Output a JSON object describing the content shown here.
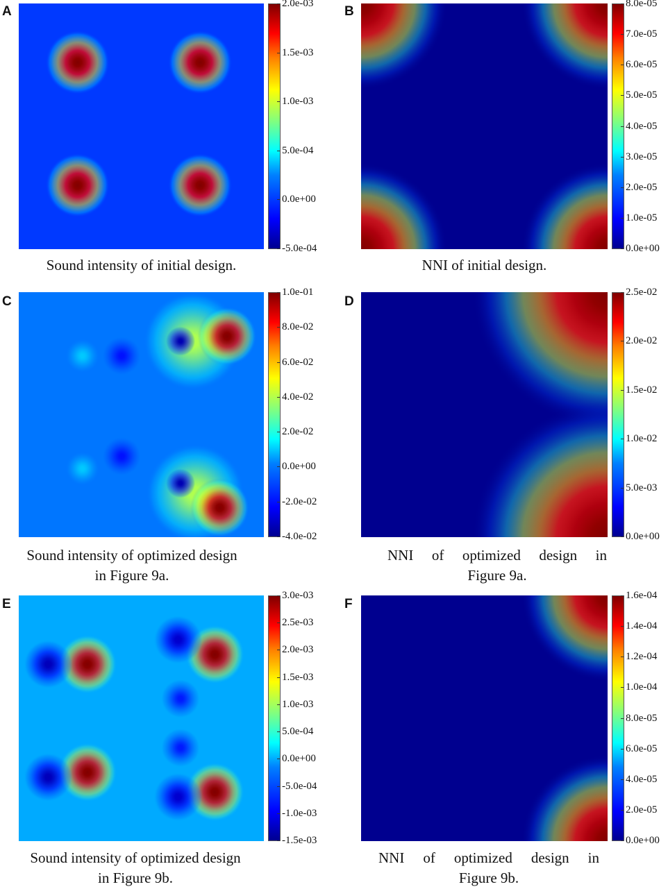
{
  "chart_data": [
    {
      "panel": "A",
      "type": "heatmap",
      "caption": "Sound intensity of initial design.",
      "colorbar_ticks": [
        "2.0e-03",
        "1.5e-03",
        "1.0e-03",
        "5.0e-04",
        "0.0e+00",
        "-5.0e-04"
      ],
      "colorbar_range": [
        -0.0005,
        0.002
      ],
      "background_value": 0.0,
      "features": [
        {
          "u": 0.24,
          "v": 0.24,
          "value": 0.002,
          "r": 0.13
        },
        {
          "u": 0.74,
          "v": 0.24,
          "value": 0.002,
          "r": 0.13
        },
        {
          "u": 0.24,
          "v": 0.74,
          "value": 0.002,
          "r": 0.13
        },
        {
          "u": 0.74,
          "v": 0.74,
          "value": 0.002,
          "r": 0.13
        }
      ]
    },
    {
      "panel": "B",
      "type": "heatmap",
      "caption": "NNI of initial design.",
      "colorbar_ticks": [
        "8.0e-05",
        "7.0e-05",
        "6.0e-05",
        "5.0e-05",
        "4.0e-05",
        "3.0e-05",
        "2.0e-05",
        "1.0e-05",
        "0.0e+00"
      ],
      "colorbar_range": [
        0,
        8e-05
      ],
      "background_value": 0.0,
      "features": [
        {
          "u": 0.0,
          "v": 0.0,
          "value": 8e-05,
          "r": 0.35
        },
        {
          "u": 1.0,
          "v": 0.0,
          "value": 8e-05,
          "r": 0.35
        },
        {
          "u": 0.0,
          "v": 1.0,
          "value": 8e-05,
          "r": 0.35
        },
        {
          "u": 1.0,
          "v": 1.0,
          "value": 8e-05,
          "r": 0.35
        }
      ]
    },
    {
      "panel": "C",
      "type": "heatmap",
      "caption_lines": [
        "Sound intensity of optimized design",
        "in Figure 9a."
      ],
      "colorbar_ticks": [
        "1.0e-01",
        "8.0e-02",
        "6.0e-02",
        "4.0e-02",
        "2.0e-02",
        "0.0e+00",
        "-2.0e-02",
        "-4.0e-02"
      ],
      "colorbar_range": [
        -0.04,
        0.1
      ],
      "background_value": 0.0,
      "features": [
        {
          "u": 0.85,
          "v": 0.18,
          "value": 0.1,
          "r": 0.12
        },
        {
          "u": 0.82,
          "v": 0.88,
          "value": 0.1,
          "r": 0.12
        },
        {
          "u": 0.71,
          "v": 0.2,
          "value": 0.04,
          "r": 0.2
        },
        {
          "u": 0.72,
          "v": 0.82,
          "value": 0.04,
          "r": 0.2
        },
        {
          "u": 0.66,
          "v": 0.2,
          "value": -0.035,
          "r": 0.06
        },
        {
          "u": 0.66,
          "v": 0.78,
          "value": -0.035,
          "r": 0.06
        },
        {
          "u": 0.42,
          "v": 0.26,
          "value": -0.02,
          "r": 0.08
        },
        {
          "u": 0.42,
          "v": 0.67,
          "value": -0.02,
          "r": 0.08
        },
        {
          "u": 0.26,
          "v": 0.26,
          "value": 0.01,
          "r": 0.07
        },
        {
          "u": 0.26,
          "v": 0.72,
          "value": 0.01,
          "r": 0.07
        }
      ]
    },
    {
      "panel": "D",
      "type": "heatmap",
      "caption_lines": [
        "NNI of optimized design in",
        "Figure 9a."
      ],
      "colorbar_ticks": [
        "2.5e-02",
        "2.0e-02",
        "1.5e-02",
        "1.0e-02",
        "5.0e-03",
        "0.0e+00"
      ],
      "colorbar_range": [
        0,
        0.025
      ],
      "background_value": 0.0,
      "features": [
        {
          "u": 1.0,
          "v": 0.0,
          "value": 0.025,
          "r": 0.55
        },
        {
          "u": 1.0,
          "v": 1.0,
          "value": 0.025,
          "r": 0.55
        }
      ]
    },
    {
      "panel": "E",
      "type": "heatmap",
      "caption_lines": [
        "Sound intensity of optimized design",
        "in Figure 9b."
      ],
      "colorbar_ticks": [
        "3.0e-03",
        "2.5e-03",
        "2.0e-03",
        "1.5e-03",
        "1.0e-03",
        "5.0e-04",
        "0.0e+00",
        "-5.0e-04",
        "-1.0e-03",
        "-1.5e-03"
      ],
      "colorbar_range": [
        -0.0015,
        0.003
      ],
      "background_value": 0.0,
      "features": [
        {
          "u": 0.28,
          "v": 0.28,
          "value": 0.003,
          "r": 0.12
        },
        {
          "u": 0.28,
          "v": 0.72,
          "value": 0.003,
          "r": 0.12
        },
        {
          "u": 0.8,
          "v": 0.24,
          "value": 0.003,
          "r": 0.12
        },
        {
          "u": 0.8,
          "v": 0.8,
          "value": 0.003,
          "r": 0.12
        },
        {
          "u": 0.12,
          "v": 0.28,
          "value": -0.0013,
          "r": 0.1
        },
        {
          "u": 0.12,
          "v": 0.74,
          "value": -0.0013,
          "r": 0.1
        },
        {
          "u": 0.65,
          "v": 0.18,
          "value": -0.0012,
          "r": 0.1
        },
        {
          "u": 0.65,
          "v": 0.82,
          "value": -0.0012,
          "r": 0.1
        },
        {
          "u": 0.66,
          "v": 0.42,
          "value": -0.0008,
          "r": 0.08
        },
        {
          "u": 0.66,
          "v": 0.62,
          "value": -0.0008,
          "r": 0.08
        }
      ]
    },
    {
      "panel": "F",
      "type": "heatmap",
      "caption_lines": [
        "NNI of optimized design in",
        "Figure 9b."
      ],
      "colorbar_ticks": [
        "1.6e-04",
        "1.4e-04",
        "1.2e-04",
        "1.0e-04",
        "8.0e-05",
        "6.0e-05",
        "4.0e-05",
        "2.0e-05",
        "0.0e+00"
      ],
      "colorbar_range": [
        0,
        0.00016
      ],
      "background_value": 0.0,
      "features": [
        {
          "u": 1.0,
          "v": 0.0,
          "value": 0.00016,
          "r": 0.35
        },
        {
          "u": 1.0,
          "v": 1.0,
          "value": 0.00016,
          "r": 0.35
        }
      ]
    }
  ]
}
